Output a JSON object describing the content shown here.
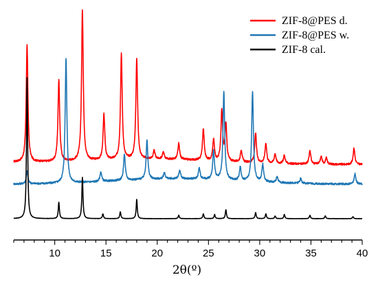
{
  "chart_data": {
    "type": "line",
    "title": "",
    "xlabel": "2θ(º)",
    "ylabel": "",
    "xlim": [
      6,
      40
    ],
    "grid": false,
    "legend_position": "top-right",
    "x_ticks": [
      10,
      15,
      20,
      25,
      30,
      35,
      40
    ],
    "x_tick_labels": [
      "10",
      "15",
      "20",
      "25",
      "30",
      "35",
      "40"
    ],
    "series": [
      {
        "name": "ZIF-8@PES d.",
        "color": "#ff0000",
        "baseline": 0.0,
        "peaks": [
          [
            7.3,
            170
          ],
          [
            10.4,
            118
          ],
          [
            12.7,
            220
          ],
          [
            14.8,
            66
          ],
          [
            16.5,
            154
          ],
          [
            18.0,
            147
          ],
          [
            19.7,
            12
          ],
          [
            20.6,
            10
          ],
          [
            22.1,
            23
          ],
          [
            24.5,
            46
          ],
          [
            25.5,
            31
          ],
          [
            26.3,
            73
          ],
          [
            26.7,
            54
          ],
          [
            28.2,
            18
          ],
          [
            29.6,
            43
          ],
          [
            30.6,
            29
          ],
          [
            31.5,
            14
          ],
          [
            32.4,
            12
          ],
          [
            34.9,
            20
          ],
          [
            36.0,
            11
          ],
          [
            36.5,
            9
          ],
          [
            39.2,
            24
          ]
        ]
      },
      {
        "name": "ZIF-8@PES w.",
        "color": "#1f77b4",
        "baseline": 0.0,
        "peaks": [
          [
            7.3,
            18
          ],
          [
            11.1,
            182
          ],
          [
            14.5,
            14
          ],
          [
            16.8,
            38
          ],
          [
            19.0,
            57
          ],
          [
            20.7,
            9
          ],
          [
            22.2,
            12
          ],
          [
            24.1,
            16
          ],
          [
            25.5,
            42
          ],
          [
            26.5,
            128
          ],
          [
            28.1,
            19
          ],
          [
            29.3,
            131
          ],
          [
            30.3,
            25
          ],
          [
            31.7,
            8
          ],
          [
            34.0,
            7
          ],
          [
            39.3,
            15
          ]
        ]
      },
      {
        "name": "ZIF-8 cal.",
        "color": "#000000",
        "baseline": 0.0,
        "peaks": [
          [
            7.3,
            205
          ],
          [
            10.4,
            24
          ],
          [
            12.7,
            60
          ],
          [
            14.7,
            7
          ],
          [
            16.4,
            10
          ],
          [
            18.0,
            28
          ],
          [
            22.1,
            5
          ],
          [
            24.5,
            7
          ],
          [
            25.6,
            6
          ],
          [
            26.7,
            13
          ],
          [
            29.6,
            9
          ],
          [
            30.6,
            7
          ],
          [
            31.5,
            4
          ],
          [
            32.4,
            6
          ],
          [
            34.9,
            5
          ],
          [
            36.4,
            4
          ],
          [
            39.1,
            3
          ]
        ]
      }
    ]
  }
}
